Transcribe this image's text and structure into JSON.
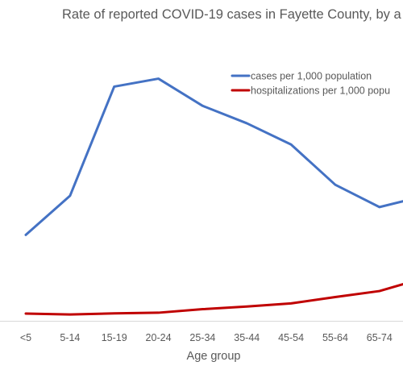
{
  "chart_data": {
    "type": "line",
    "title": "Rate of reported COVID-19 cases in Fayette County, by a",
    "xlabel": "Age group",
    "ylabel": "",
    "categories": [
      "<5",
      "5-14",
      "15-19",
      "20-24",
      "25-34",
      "35-44",
      "45-54",
      "55-64",
      "65-74",
      ""
    ],
    "series": [
      {
        "name": "cases per 1,000 population",
        "color": "#4472c4",
        "values": [
          35.6,
          53.3,
          102.7,
          106.3,
          94.0,
          86.1,
          76.5,
          58.3,
          48.2,
          53.1
        ]
      },
      {
        "name": "hospitalizations per 1,000 popu",
        "color": "#c00000",
        "values": [
          0.0,
          -0.4,
          0.1,
          0.4,
          2.0,
          3.2,
          4.6,
          7.5,
          10.2,
          16.0
        ]
      }
    ],
    "ylim": [
      -4,
      120
    ],
    "grid": false,
    "legend": "top-right"
  }
}
